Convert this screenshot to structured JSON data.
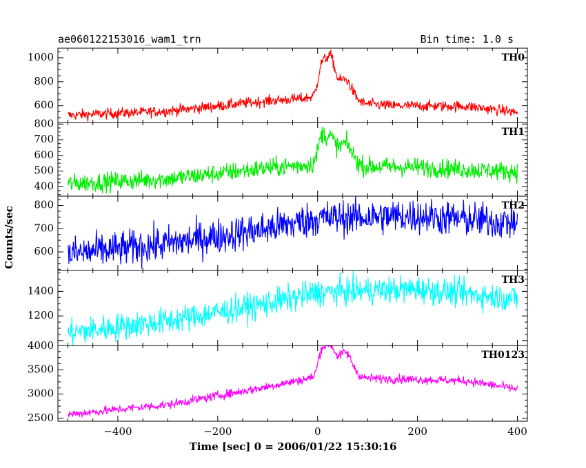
{
  "header": {
    "title": "ae060122153016_wam1_trn",
    "bin_time": "Bin time: 1.0 s"
  },
  "chart_data": {
    "type": "line",
    "xlabel": "Time [sec] 0 = 2006/01/22 15:30:16",
    "ylabel": "Counts/sec",
    "xlim": [
      -520,
      420
    ],
    "xticks": [
      -400,
      -200,
      0,
      200,
      400
    ],
    "x_range": [
      -500,
      400
    ],
    "bin_time_s": 1.0,
    "grid": false,
    "panels": [
      {
        "name": "TH0",
        "color": "#ff0000",
        "ylim": [
          460,
          1080
        ],
        "yticks": [
          600,
          800,
          1000
        ],
        "ytick_labels": [
          "600",
          "800",
          "1000"
        ],
        "noise": 22,
        "baseline": [
          [
            -500,
            520
          ],
          [
            -300,
            555
          ],
          [
            -100,
            640
          ],
          [
            -30,
            660
          ],
          [
            0,
            680
          ],
          [
            80,
            620
          ],
          [
            150,
            600
          ],
          [
            300,
            595
          ],
          [
            400,
            545
          ]
        ],
        "peaks": [
          [
            8,
            230,
            7
          ],
          [
            25,
            330,
            9
          ],
          [
            55,
            180,
            14
          ]
        ]
      },
      {
        "name": "TH1",
        "color": "#00ee00",
        "ylim": [
          340,
          810
        ],
        "yticks": [
          400,
          500,
          600,
          700,
          800
        ],
        "ytick_labels": [
          "400",
          "500",
          "600",
          "700",
          "800"
        ],
        "noise": 30,
        "baseline": [
          [
            -500,
            420
          ],
          [
            -300,
            450
          ],
          [
            -100,
            520
          ],
          [
            0,
            545
          ],
          [
            80,
            530
          ],
          [
            200,
            525
          ],
          [
            400,
            495
          ]
        ],
        "peaks": [
          [
            8,
            160,
            7
          ],
          [
            25,
            160,
            9
          ],
          [
            55,
            140,
            14
          ]
        ]
      },
      {
        "name": "TH2",
        "color": "#0000ff",
        "ylim": [
          520,
          840
        ],
        "yticks": [
          600,
          700,
          800
        ],
        "ytick_labels": [
          "600",
          "700",
          "800"
        ],
        "noise": 38,
        "baseline": [
          [
            -500,
            590
          ],
          [
            -300,
            635
          ],
          [
            -100,
            700
          ],
          [
            0,
            745
          ],
          [
            200,
            755
          ],
          [
            400,
            725
          ]
        ],
        "peaks": []
      },
      {
        "name": "TH3",
        "color": "#00ffff",
        "ylim": [
          960,
          1570
        ],
        "yticks": [
          1200,
          1400
        ],
        "ytick_labels": [
          "1200",
          "1400"
        ],
        "noise": 55,
        "baseline": [
          [
            -500,
            1060
          ],
          [
            -300,
            1160
          ],
          [
            -100,
            1300
          ],
          [
            0,
            1390
          ],
          [
            200,
            1420
          ],
          [
            400,
            1340
          ]
        ],
        "peaks": []
      },
      {
        "name": "TH0123",
        "color": "#ff00ff",
        "ylim": [
          2440,
          4000
        ],
        "yticks": [
          2500,
          3000,
          3500,
          4000
        ],
        "ytick_labels": [
          "2500",
          "3000",
          "3500",
          "4000"
        ],
        "noise": 45,
        "baseline": [
          [
            -500,
            2580
          ],
          [
            -300,
            2780
          ],
          [
            -100,
            3150
          ],
          [
            -20,
            3320
          ],
          [
            0,
            3360
          ],
          [
            80,
            3330
          ],
          [
            200,
            3300
          ],
          [
            300,
            3270
          ],
          [
            400,
            3100
          ]
        ],
        "peaks": [
          [
            8,
            480,
            7
          ],
          [
            25,
            600,
            9
          ],
          [
            55,
            520,
            14
          ]
        ]
      }
    ]
  }
}
